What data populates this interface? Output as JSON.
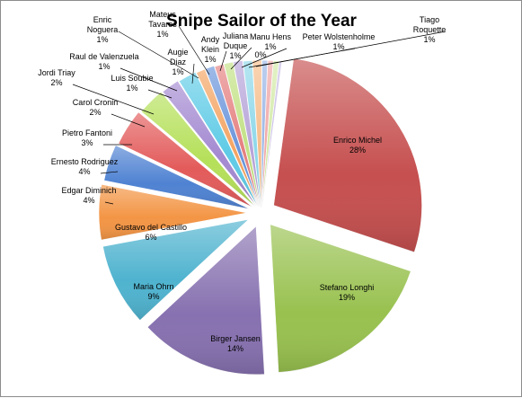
{
  "chart_data": {
    "type": "pie",
    "title": "Snipe Sailor of the Year",
    "legend": "none",
    "slices": [
      {
        "label": "Enrico Michel",
        "value": 28,
        "pct": "28%",
        "color": "#c64f4f"
      },
      {
        "label": "Stefano Longhi",
        "value": 19,
        "pct": "19%",
        "color": "#98c14f"
      },
      {
        "label": "Birger Jansen",
        "value": 14,
        "pct": "14%",
        "color": "#8771b0"
      },
      {
        "label": "Maria Ohrn",
        "value": 9,
        "pct": "9%",
        "color": "#4fb3cf"
      },
      {
        "label": "Gustavo del Castillo",
        "value": 6,
        "pct": "6%",
        "color": "#f39545"
      },
      {
        "label": "Edgar Diminich",
        "value": 4,
        "pct": "4%",
        "color": "#4f82d2"
      },
      {
        "label": "Ernesto Rodriguez",
        "value": 4,
        "pct": "4%",
        "color": "#e35b5b"
      },
      {
        "label": "Pietro Fantoni",
        "value": 3,
        "pct": "3%",
        "color": "#b5e05a"
      },
      {
        "label": "Carol Cronin",
        "value": 2,
        "pct": "2%",
        "color": "#a48ad1"
      },
      {
        "label": "Jordi Triay",
        "value": 2,
        "pct": "2%",
        "color": "#5fcbe6"
      },
      {
        "label": "Luis Soubie",
        "value": 1,
        "pct": "1%",
        "color": "#f4a462"
      },
      {
        "label": "Raul de Valenzuela",
        "value": 1,
        "pct": "1%",
        "color": "#6a95db"
      },
      {
        "label": "Augie Diaz",
        "value": 1,
        "pct": "1%",
        "color": "#e58080"
      },
      {
        "label": "Enric Noguera",
        "value": 1,
        "pct": "1%",
        "color": "#c2e184"
      },
      {
        "label": "Mateus Tavares",
        "value": 1,
        "pct": "1%",
        "color": "#b7a5d9"
      },
      {
        "label": "Andy Klein",
        "value": 1,
        "pct": "1%",
        "color": "#8ed8ea"
      },
      {
        "label": "Juliana Duque",
        "value": 1,
        "pct": "1%",
        "color": "#f6bd8a"
      },
      {
        "label": "Manu Hens",
        "value": 0.6,
        "pct": "1%",
        "color": "#9ab6e6"
      },
      {
        "label": "Peter Wolstenholme",
        "value": 0.6,
        "pct": "1%",
        "color": "#f0a8a8"
      },
      {
        "label": "Tiago Roquette",
        "value": 0.6,
        "pct": "1%",
        "color": "#d4eaa8"
      },
      {
        "label": "",
        "value": 0.3,
        "pct": "0%",
        "color": "#c9bde6"
      }
    ]
  }
}
